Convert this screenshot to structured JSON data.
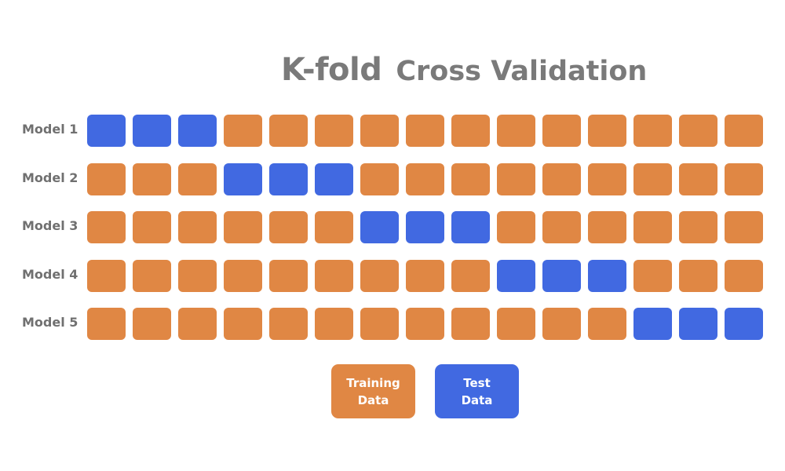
{
  "title": {
    "part1": "K-fold",
    "part2": "Cross Validation"
  },
  "colors": {
    "train": "#e08744",
    "test": "#4169e1",
    "text": "#707070"
  },
  "folds": [
    {
      "label": "Model 1",
      "test_start": 0
    },
    {
      "label": "Model 2",
      "test_start": 3
    },
    {
      "label": "Model 3",
      "test_start": 6
    },
    {
      "label": "Model 4",
      "test_start": 9
    },
    {
      "label": "Model 5",
      "test_start": 12
    }
  ],
  "cells_per_row": 15,
  "cells_per_fold": 3,
  "legend": {
    "train": {
      "line1": "Training",
      "line2": "Data"
    },
    "test": {
      "line1": "Test",
      "line2": "Data"
    }
  }
}
